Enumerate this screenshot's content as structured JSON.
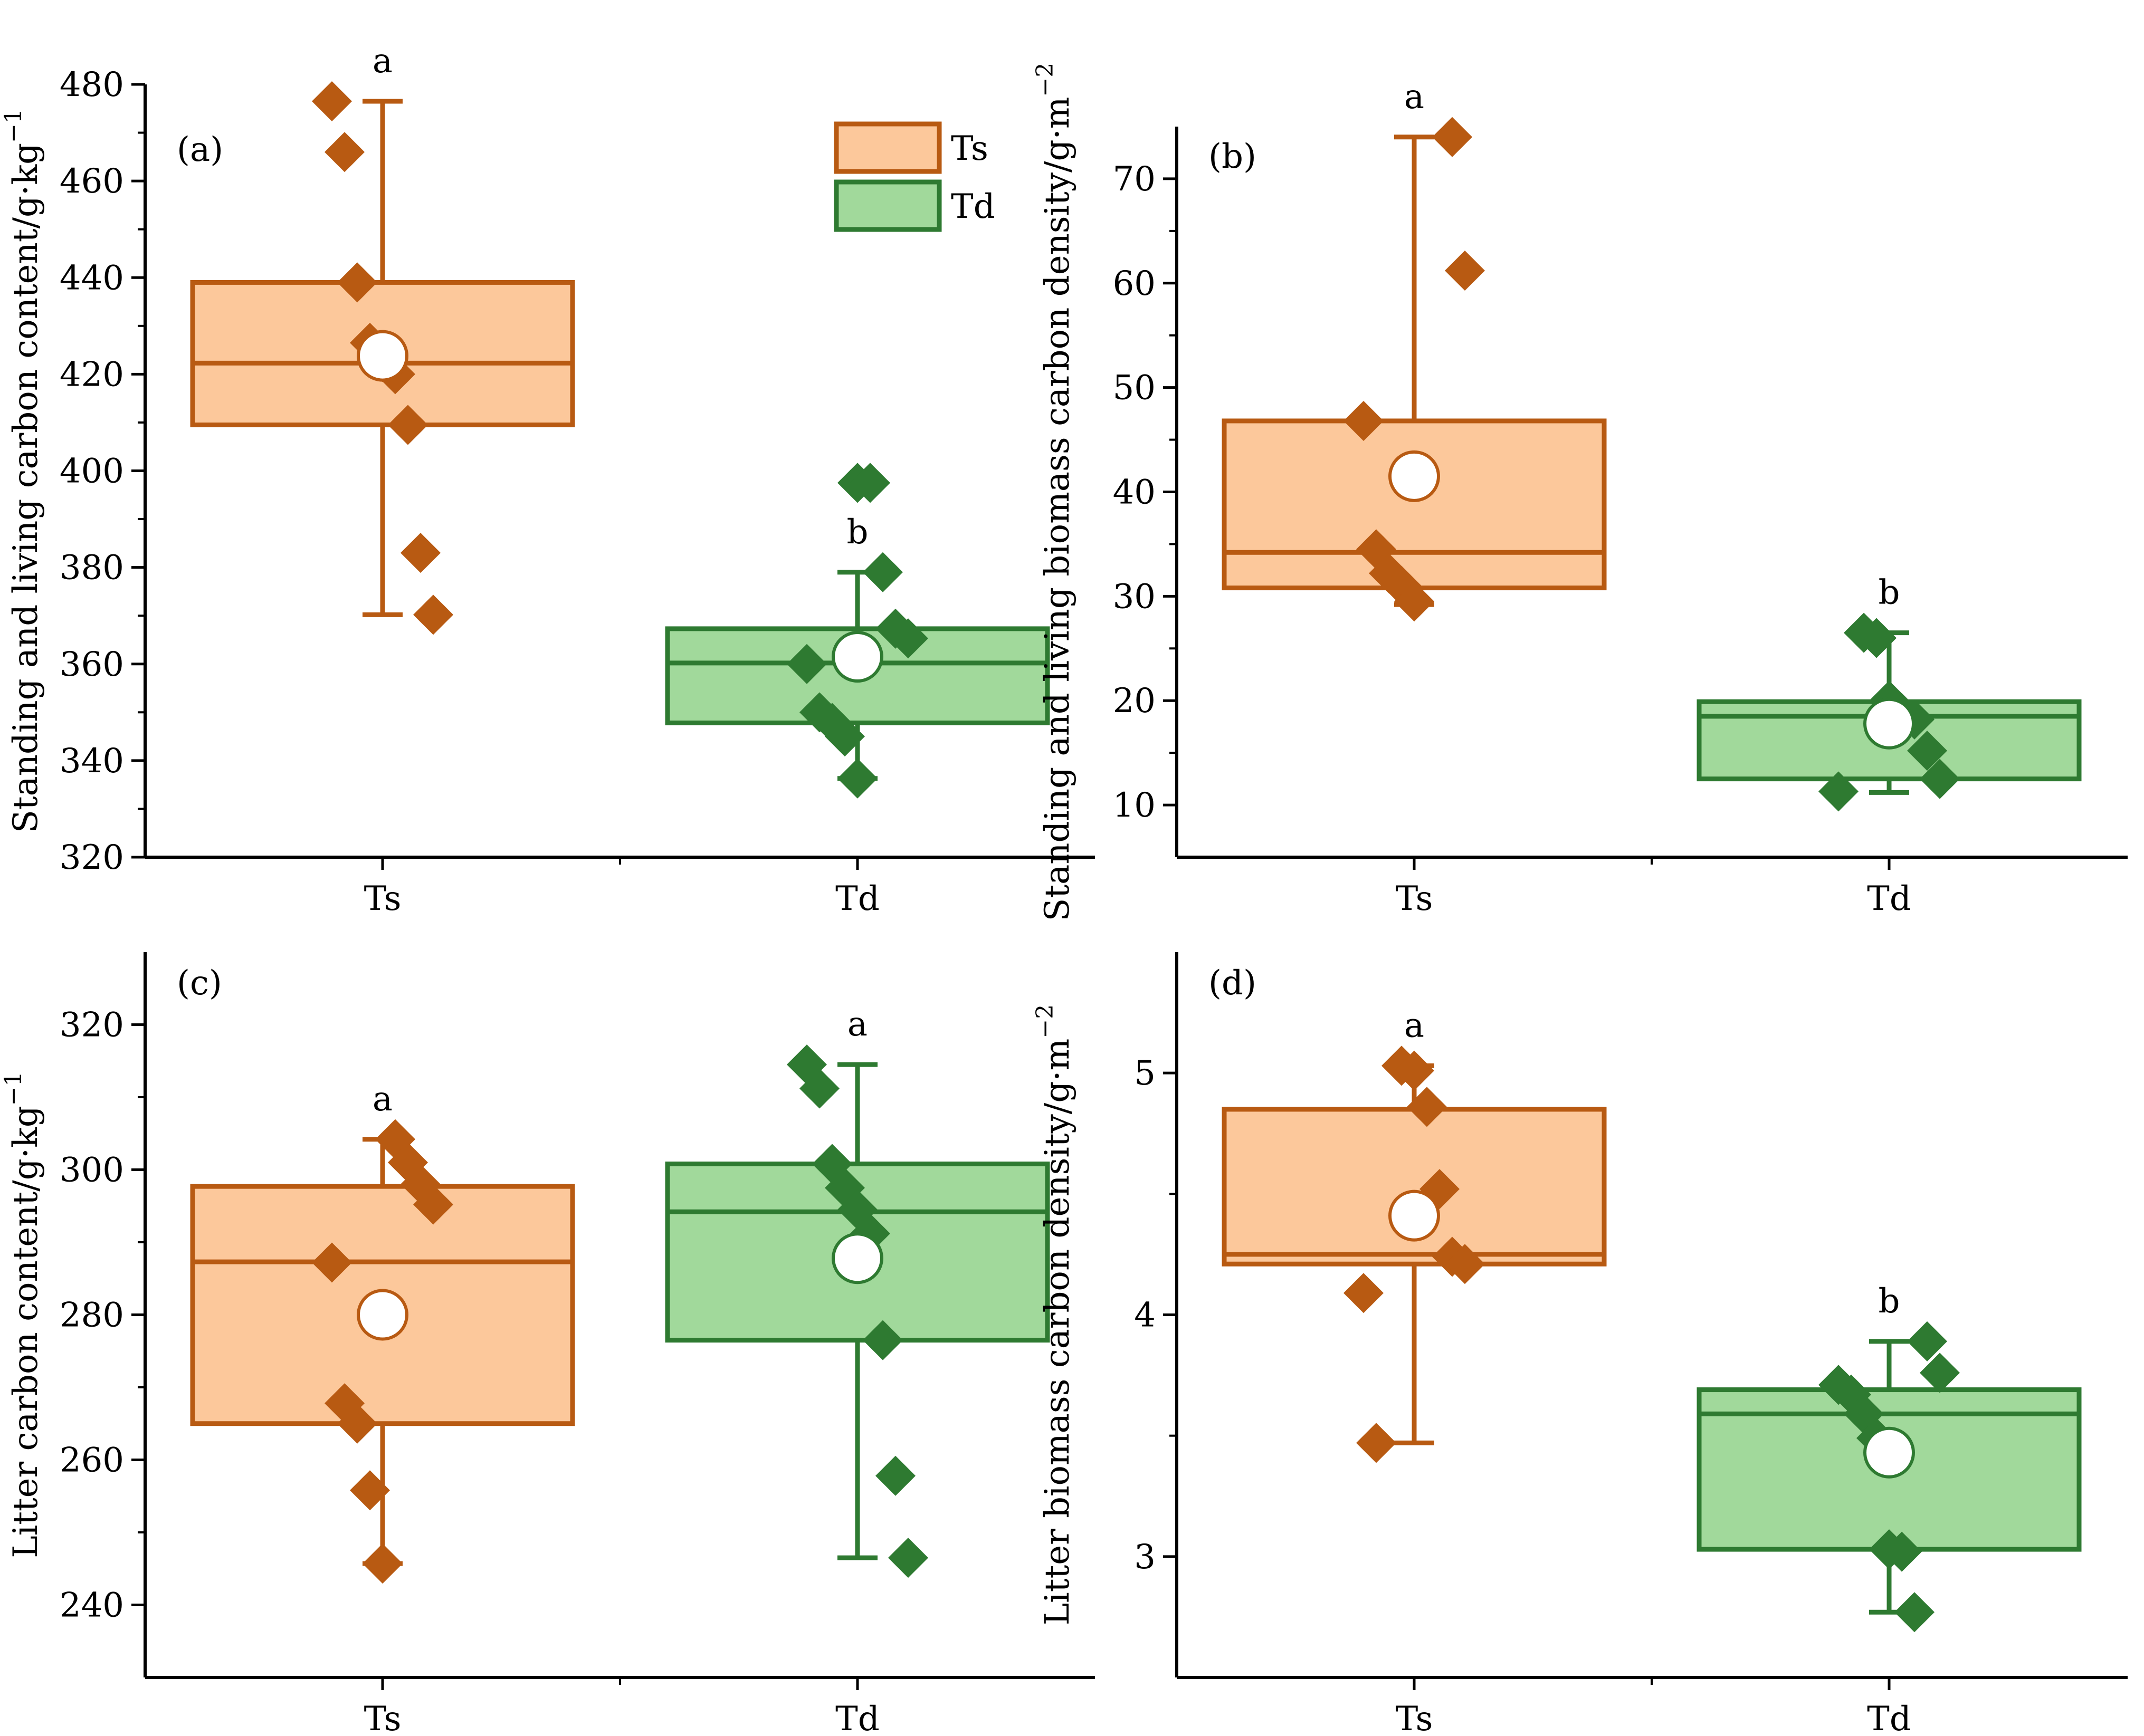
{
  "legend": {
    "items": [
      {
        "label": "Ts",
        "fill": "#FCC89B",
        "stroke": "#B85A12"
      },
      {
        "label": "Td",
        "fill": "#A1D99B",
        "stroke": "#2E7A31"
      }
    ]
  },
  "colors": {
    "ts_fill": "#FCC89B",
    "ts_stroke": "#B85A12",
    "td_fill": "#A1D99B",
    "td_stroke": "#2E7A31",
    "axis": "#000000",
    "mean_marker": "#FFFFFF"
  },
  "chart_data": [
    {
      "type": "box",
      "panel_label": "(a)",
      "ylabel": "Standing and living carbon content/g·kg",
      "ylabel_sup": "−1",
      "ylim": [
        320,
        480
      ],
      "yticks": [
        320,
        340,
        360,
        380,
        400,
        420,
        440,
        460,
        480
      ],
      "categories": [
        "Ts",
        "Td"
      ],
      "show_legend": true,
      "series": [
        {
          "group": "Ts",
          "q1": 409.5,
          "median": 422.3,
          "q3": 439.0,
          "whisker_low": 370.2,
          "whisker_high": 476.5,
          "mean": 423.8,
          "letter": "a",
          "points": [
            476.5,
            466.0,
            439.0,
            426.5,
            422.5,
            420.0,
            409.5,
            383.0,
            370.2
          ]
        },
        {
          "group": "Td",
          "q1": 347.8,
          "median": 360.2,
          "q3": 367.3,
          "whisker_low": 336.3,
          "whisker_high": 379.0,
          "mean": 361.5,
          "letter": "b",
          "points": [
            397.5,
            397.5,
            379.0,
            367.3,
            365.3,
            360.0,
            350.0,
            347.8,
            345.0,
            336.3
          ]
        }
      ]
    },
    {
      "type": "box",
      "panel_label": "(b)",
      "ylabel": "Standing and living biomass carbon density/g·m",
      "ylabel_sup": "−2",
      "ylim": [
        5,
        75
      ],
      "yticks": [
        10,
        20,
        30,
        40,
        50,
        60,
        70
      ],
      "categories": [
        "Ts",
        "Td"
      ],
      "show_legend": false,
      "series": [
        {
          "group": "Ts",
          "q1": 30.8,
          "median": 34.2,
          "q3": 46.8,
          "whisker_low": 29.2,
          "whisker_high": 74.0,
          "mean": 41.5,
          "letter": "a",
          "points": [
            74.0,
            61.2,
            46.8,
            34.5,
            32.2,
            31.0,
            29.5
          ]
        },
        {
          "group": "Td",
          "q1": 12.5,
          "median": 18.5,
          "q3": 19.9,
          "whisker_low": 11.2,
          "whisker_high": 26.5,
          "mean": 17.8,
          "letter": "b",
          "points": [
            26.5,
            26.0,
            20.0,
            18.8,
            18.2,
            15.2,
            12.5,
            11.3
          ]
        }
      ]
    },
    {
      "type": "box",
      "panel_label": "(c)",
      "ylabel": "Litter carbon content/g·kg",
      "ylabel_sup": "−1",
      "ylim": [
        230,
        330
      ],
      "yticks": [
        240,
        260,
        280,
        300,
        320
      ],
      "categories": [
        "Ts",
        "Td"
      ],
      "show_legend": false,
      "series": [
        {
          "group": "Ts",
          "q1": 265.0,
          "median": 287.3,
          "q3": 297.7,
          "whisker_low": 245.7,
          "whisker_high": 304.2,
          "mean": 280.0,
          "letter": "a",
          "points": [
            304.2,
            301.0,
            298.0,
            295.2,
            287.2,
            267.8,
            265.0,
            255.8,
            245.7
          ]
        },
        {
          "group": "Td",
          "q1": 276.5,
          "median": 294.2,
          "q3": 300.8,
          "whisker_low": 246.5,
          "whisker_high": 314.5,
          "mean": 287.8,
          "letter": "a",
          "points": [
            314.5,
            311.2,
            300.8,
            297.5,
            294.5,
            291.2,
            276.5,
            257.8,
            246.5
          ]
        }
      ]
    },
    {
      "type": "box",
      "panel_label": "(d)",
      "ylabel": "Litter biomass carbon density/g·m",
      "ylabel_sup": "−2",
      "ylim": [
        2.5,
        5.5
      ],
      "yticks": [
        3,
        4,
        5
      ],
      "categories": [
        "Ts",
        "Td"
      ],
      "show_legend": false,
      "series": [
        {
          "group": "Ts",
          "q1": 4.21,
          "median": 4.25,
          "q3": 4.85,
          "whisker_low": 3.47,
          "whisker_high": 5.03,
          "mean": 4.41,
          "letter": "a",
          "points": [
            5.03,
            5.01,
            4.86,
            4.52,
            4.24,
            4.21,
            4.09,
            3.47
          ]
        },
        {
          "group": "Td",
          "q1": 3.03,
          "median": 3.59,
          "q3": 3.69,
          "whisker_low": 2.77,
          "whisker_high": 3.89,
          "mean": 3.43,
          "letter": "b",
          "points": [
            3.89,
            3.76,
            3.71,
            3.67,
            3.59,
            3.49,
            3.03,
            3.02,
            2.77
          ]
        }
      ]
    }
  ]
}
